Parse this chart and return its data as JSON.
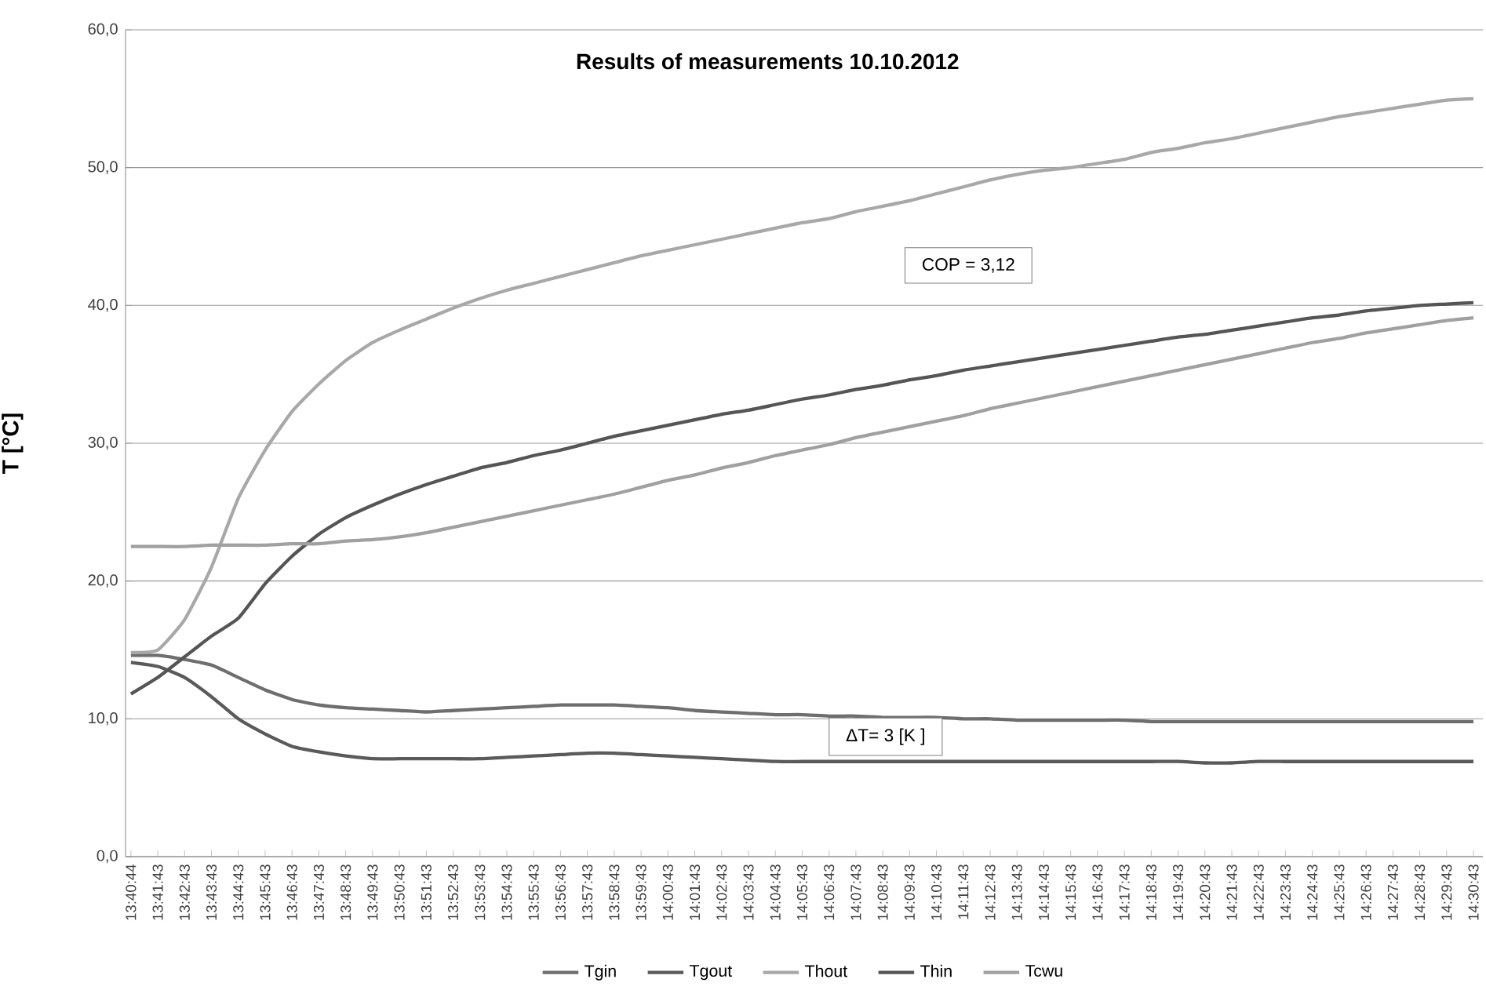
{
  "chart_data": {
    "type": "line",
    "title": "Results of measurements   10.10.2012",
    "ylabel": "T  [°C]",
    "categories": [
      "13:40:44",
      "13:41:43",
      "13:42:43",
      "13:43:43",
      "13:44:43",
      "13:45:43",
      "13:46:43",
      "13:47:43",
      "13:48:43",
      "13:49:43",
      "13:50:43",
      "13:51:43",
      "13:52:43",
      "13:53:43",
      "13:54:43",
      "13:55:43",
      "13:56:43",
      "13:57:43",
      "13:58:43",
      "13:59:43",
      "14:00:43",
      "14:01:43",
      "14:02:43",
      "14:03:43",
      "14:04:43",
      "14:05:43",
      "14:06:43",
      "14:07:43",
      "14:08:43",
      "14:09:43",
      "14:10:43",
      "14:11:43",
      "14:12:43",
      "14:13:43",
      "14:14:43",
      "14:15:43",
      "14:16:43",
      "14:17:43",
      "14:18:43",
      "14:19:43",
      "14:20:43",
      "14:21:43",
      "14:22:43",
      "14:23:43",
      "14:24:43",
      "14:25:43",
      "14:26:43",
      "14:27:43",
      "14:28:43",
      "14:29:43",
      "14:30:43"
    ],
    "series": [
      {
        "name": "Tgin",
        "color": "#6e6e6e",
        "values": [
          14.6,
          14.6,
          14.3,
          13.9,
          13.0,
          12.1,
          11.4,
          11.0,
          10.8,
          10.7,
          10.6,
          10.5,
          10.6,
          10.7,
          10.8,
          10.9,
          11.0,
          11.0,
          11.0,
          10.9,
          10.8,
          10.6,
          10.5,
          10.4,
          10.3,
          10.3,
          10.2,
          10.2,
          10.1,
          10.1,
          10.1,
          10.0,
          10.0,
          9.9,
          9.9,
          9.9,
          9.9,
          9.9,
          9.8,
          9.8,
          9.8,
          9.8,
          9.8,
          9.8,
          9.8,
          9.8,
          9.8,
          9.8,
          9.8,
          9.8,
          9.8
        ]
      },
      {
        "name": "Tgout",
        "color": "#5a5a5a",
        "values": [
          14.1,
          13.8,
          13.0,
          11.6,
          10.0,
          8.9,
          8.0,
          7.6,
          7.3,
          7.1,
          7.1,
          7.1,
          7.1,
          7.1,
          7.2,
          7.3,
          7.4,
          7.5,
          7.5,
          7.4,
          7.3,
          7.2,
          7.1,
          7.0,
          6.9,
          6.9,
          6.9,
          6.9,
          6.9,
          6.9,
          6.9,
          6.9,
          6.9,
          6.9,
          6.9,
          6.9,
          6.9,
          6.9,
          6.9,
          6.9,
          6.8,
          6.8,
          6.9,
          6.9,
          6.9,
          6.9,
          6.9,
          6.9,
          6.9,
          6.9,
          6.9
        ]
      },
      {
        "name": "Thout",
        "color": "#a8a8a8",
        "values": [
          14.8,
          15.0,
          17.2,
          21.0,
          26.0,
          29.5,
          32.3,
          34.3,
          36.0,
          37.3,
          38.2,
          39.0,
          39.8,
          40.5,
          41.1,
          41.6,
          42.1,
          42.6,
          43.1,
          43.6,
          44.0,
          44.4,
          44.8,
          45.2,
          45.6,
          46.0,
          46.3,
          46.8,
          47.2,
          47.6,
          48.1,
          48.6,
          49.1,
          49.5,
          49.8,
          50.0,
          50.3,
          50.6,
          51.1,
          51.4,
          51.8,
          52.1,
          52.5,
          52.9,
          53.3,
          53.7,
          54.0,
          54.3,
          54.6,
          54.9,
          55.0
        ]
      },
      {
        "name": "Thin",
        "color": "#555555",
        "values": [
          11.8,
          13.0,
          14.5,
          16.0,
          17.3,
          19.8,
          21.8,
          23.4,
          24.6,
          25.5,
          26.3,
          27.0,
          27.6,
          28.2,
          28.6,
          29.1,
          29.5,
          30.0,
          30.5,
          30.9,
          31.3,
          31.7,
          32.1,
          32.4,
          32.8,
          33.2,
          33.5,
          33.9,
          34.2,
          34.6,
          34.9,
          35.3,
          35.6,
          35.9,
          36.2,
          36.5,
          36.8,
          37.1,
          37.4,
          37.7,
          37.9,
          38.2,
          38.5,
          38.8,
          39.1,
          39.3,
          39.6,
          39.8,
          40.0,
          40.1,
          40.2
        ]
      },
      {
        "name": "Tcwu",
        "color": "#a0a0a0",
        "values": [
          22.5,
          22.5,
          22.5,
          22.6,
          22.6,
          22.6,
          22.7,
          22.7,
          22.9,
          23.0,
          23.2,
          23.5,
          23.9,
          24.3,
          24.7,
          25.1,
          25.5,
          25.9,
          26.3,
          26.8,
          27.3,
          27.7,
          28.2,
          28.6,
          29.1,
          29.5,
          29.9,
          30.4,
          30.8,
          31.2,
          31.6,
          32.0,
          32.5,
          32.9,
          33.3,
          33.7,
          34.1,
          34.5,
          34.9,
          35.3,
          35.7,
          36.1,
          36.5,
          36.9,
          37.3,
          37.6,
          38.0,
          38.3,
          38.6,
          38.9,
          39.1
        ]
      }
    ],
    "ylim": [
      0,
      60
    ],
    "yticks": [
      {
        "value": 0,
        "label": "0,0"
      },
      {
        "value": 10,
        "label": "10,0"
      },
      {
        "value": 20,
        "label": "20,0"
      },
      {
        "value": 30,
        "label": "30,0"
      },
      {
        "value": 40,
        "label": "40,0"
      },
      {
        "value": 50,
        "label": "50,0"
      },
      {
        "value": 60,
        "label": "60,0"
      }
    ],
    "grid": "y",
    "legend": "bottom",
    "marker": "none",
    "line_style": "solid",
    "annotations": [
      "COP = 3,12",
      "ΔT= 3 [K ]"
    ]
  }
}
